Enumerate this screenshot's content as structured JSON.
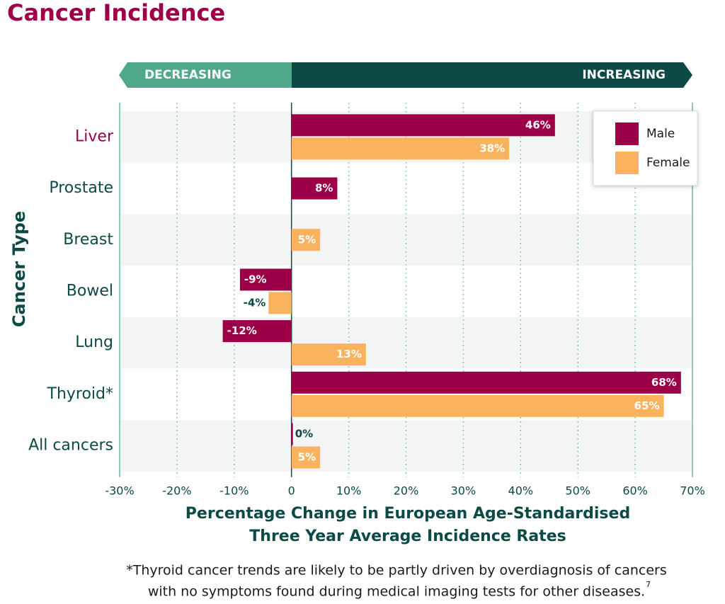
{
  "chart_data": {
    "type": "barh",
    "title": "Cancer Incidence",
    "banner": {
      "left": "DECREASING",
      "right": "INCREASING"
    },
    "y_label": "Cancer Type",
    "x_label": [
      "Percentage Change in European Age-Standardised",
      "Three Year Average Incidence Rates"
    ],
    "categories": [
      "Liver",
      "Prostate",
      "Breast",
      "Bowel",
      "Lung",
      "Thyroid*",
      "All cancers"
    ],
    "series": [
      {
        "name": "Male",
        "color": "#9b0048",
        "values": [
          46,
          8,
          null,
          -9,
          -12,
          68,
          0
        ],
        "value_labels": [
          "46%",
          "8%",
          null,
          "-9%",
          "-12%",
          "68%",
          "0%"
        ]
      },
      {
        "name": "Female",
        "color": "#f9b35e",
        "values": [
          38,
          null,
          5,
          -4,
          13,
          65,
          5
        ],
        "value_labels": [
          "38%",
          null,
          "5%",
          "-4%",
          "13%",
          "65%",
          "5%"
        ]
      }
    ],
    "xlim": [
      -30,
      70
    ],
    "xticks": [
      {
        "value": -30,
        "label": "-30%"
      },
      {
        "value": -20,
        "label": "-20%"
      },
      {
        "value": -10,
        "label": "-10%"
      },
      0,
      {
        "value": 10,
        "label": "10%"
      },
      {
        "value": 20,
        "label": "20%"
      },
      {
        "value": 30,
        "label": "30%"
      },
      {
        "value": 40,
        "label": "40%"
      },
      {
        "value": 50,
        "label": "50%"
      },
      {
        "value": 60,
        "label": "60%"
      },
      {
        "value": 70,
        "label": "70%"
      }
    ],
    "grid": true,
    "legend": "upper right",
    "footnote": [
      "*Thyroid cancer trends are likely to be partly driven by overdiagnosis of cancers",
      "with no symptoms found during medical imaging tests for other diseases."
    ],
    "footnote_ref": "7"
  }
}
